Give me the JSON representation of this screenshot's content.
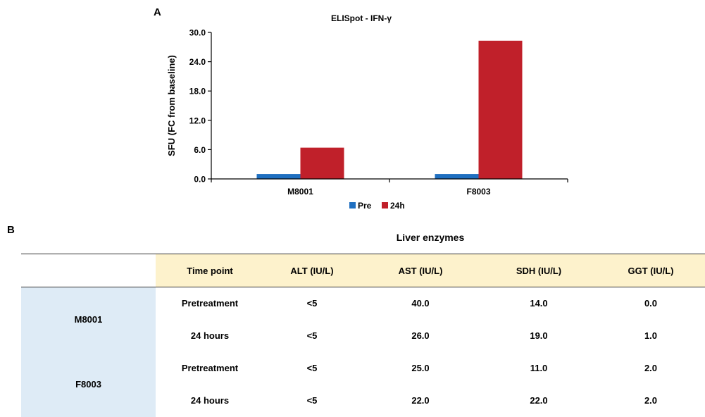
{
  "panel_a_letter": "A",
  "panel_b_letter": "B",
  "chart_data": {
    "type": "bar",
    "title": "ELISpot - IFN-γ",
    "xlabel": "",
    "ylabel": "SFU (FC from baseline)",
    "ylim": [
      0,
      30
    ],
    "yticks": [
      "0.0",
      "6.0",
      "12.0",
      "18.0",
      "24.0",
      "30.0"
    ],
    "categories": [
      "M8001",
      "F8003"
    ],
    "series": [
      {
        "name": "Pre",
        "color": "#1f6fc0",
        "values": [
          1.0,
          1.0
        ]
      },
      {
        "name": "24h",
        "color": "#c0202a",
        "values": [
          6.4,
          28.3
        ]
      }
    ],
    "legend_position": "bottom-center",
    "grid": false
  },
  "table": {
    "title": "Liver enzymes",
    "columns": [
      "",
      "Time point",
      "ALT (IU/L)",
      "AST (IU/L)",
      "SDH (IU/L)",
      "GGT (IU/L)"
    ],
    "rows": [
      {
        "subject": "M8001",
        "time": "Pretreatment",
        "alt": "<5",
        "ast": "40.0",
        "sdh": "14.0",
        "ggt": "0.0"
      },
      {
        "subject": "",
        "time": "24 hours",
        "alt": "<5",
        "ast": "26.0",
        "sdh": "19.0",
        "ggt": "1.0"
      },
      {
        "subject": "F8003",
        "time": "Pretreatment",
        "alt": "<5",
        "ast": "25.0",
        "sdh": "11.0",
        "ggt": "2.0"
      },
      {
        "subject": "",
        "time": "24 hours",
        "alt": "<5",
        "ast": "22.0",
        "sdh": "22.0",
        "ggt": "2.0"
      }
    ]
  },
  "colors": {
    "header_fill": "#fdf2cc",
    "subject_fill": "#deebf6"
  }
}
